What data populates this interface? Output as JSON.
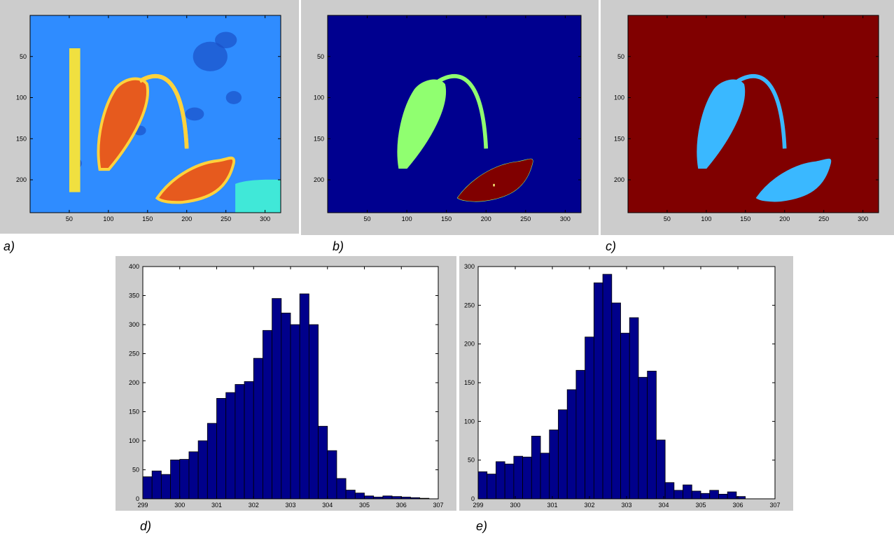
{
  "chart_data": [
    {
      "type": "image",
      "label": "a)",
      "xlim": [
        0,
        320
      ],
      "ylim": [
        240,
        0
      ],
      "xticks": [
        50,
        100,
        150,
        200,
        250,
        300
      ],
      "yticks": [
        50,
        100,
        150,
        200
      ]
    },
    {
      "type": "image",
      "label": "b)",
      "xlim": [
        0,
        320
      ],
      "ylim": [
        240,
        0
      ],
      "xticks": [
        50,
        100,
        150,
        200,
        250,
        300
      ],
      "yticks": [
        50,
        100,
        150,
        200
      ]
    },
    {
      "type": "image",
      "label": "c)",
      "xlim": [
        0,
        320
      ],
      "ylim": [
        240,
        0
      ],
      "xticks": [
        50,
        100,
        150,
        200,
        250,
        300
      ],
      "yticks": [
        50,
        100,
        150,
        200
      ]
    },
    {
      "type": "histogram",
      "label": "d)",
      "color": "#00008b",
      "bins": [
        299,
        299.25,
        299.5,
        299.75,
        300,
        300.25,
        300.5,
        300.75,
        301,
        301.25,
        301.5,
        301.75,
        302,
        302.25,
        302.5,
        302.75,
        303,
        303.25,
        303.5,
        303.75,
        304,
        304.25,
        304.5,
        304.75,
        305,
        305.25,
        305.5,
        305.75,
        306,
        306.25,
        306.5,
        306.75
      ],
      "values": [
        38,
        48,
        42,
        67,
        68,
        81,
        100,
        130,
        173,
        183,
        197,
        202,
        242,
        290,
        345,
        320,
        300,
        353,
        300,
        125,
        83,
        35,
        15,
        10,
        5,
        3,
        5,
        4,
        3,
        2,
        1
      ],
      "xlim": [
        299,
        307
      ],
      "xticks": [
        299,
        300,
        301,
        302,
        303,
        304,
        305,
        306,
        307
      ],
      "ylim": [
        0,
        400
      ],
      "yticks": [
        0,
        50,
        100,
        150,
        200,
        250,
        300,
        350,
        400
      ]
    },
    {
      "type": "histogram",
      "label": "e)",
      "color": "#00008b",
      "bins": [
        299,
        299.24,
        299.48,
        299.72,
        299.96,
        300.2,
        300.44,
        300.68,
        300.92,
        301.16,
        301.4,
        301.64,
        301.88,
        302.12,
        302.36,
        302.6,
        302.84,
        303.08,
        303.32,
        303.56,
        303.8,
        304.04,
        304.28,
        304.52,
        304.76,
        305,
        305.24,
        305.48,
        305.72,
        305.96,
        306.2
      ],
      "values": [
        35,
        32,
        48,
        45,
        55,
        54,
        81,
        59,
        89,
        115,
        141,
        166,
        209,
        279,
        290,
        253,
        214,
        234,
        157,
        165,
        76,
        21,
        11,
        18,
        10,
        7,
        11,
        6,
        9,
        3
      ],
      "xlim": [
        299,
        307
      ],
      "xticks": [
        299,
        300,
        301,
        302,
        303,
        304,
        305,
        306,
        307
      ],
      "ylim": [
        0,
        300
      ],
      "yticks": [
        0,
        50,
        100,
        150,
        200,
        250,
        300
      ]
    }
  ]
}
